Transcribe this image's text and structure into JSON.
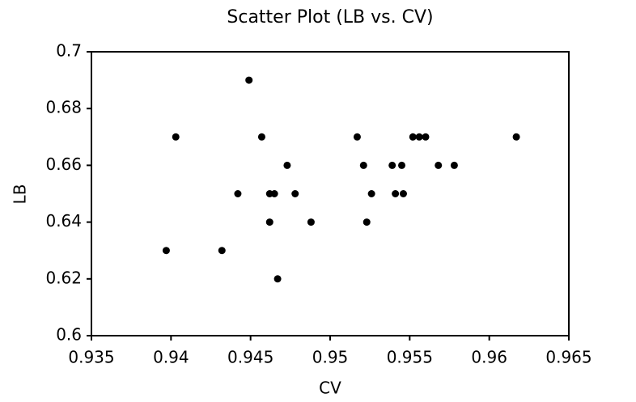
{
  "chart_data": {
    "type": "scatter",
    "title": "Scatter Plot (LB vs. CV)",
    "x_label": "CV",
    "y_label": "LB",
    "series": [
      {
        "color": "#000000",
        "x": [
          0.9397,
          0.9403,
          0.9432,
          0.9442,
          0.9449,
          0.9457,
          0.9462,
          0.9462,
          0.9465,
          0.9467,
          0.9473,
          0.9478,
          0.9488,
          0.9517,
          0.9521,
          0.9523,
          0.9526,
          0.9539,
          0.9541,
          0.9545,
          0.9546,
          0.9552,
          0.9556,
          0.956,
          0.9568,
          0.9578,
          0.9617
        ],
        "values": [
          0.63,
          0.67,
          0.63,
          0.65,
          0.69,
          0.67,
          0.65,
          0.64,
          0.65,
          0.62,
          0.66,
          0.65,
          0.64,
          0.67,
          0.66,
          0.64,
          0.65,
          0.66,
          0.65,
          0.66,
          0.65,
          0.67,
          0.67,
          0.67,
          0.66,
          0.66,
          0.67
        ]
      }
    ],
    "xlim": [
      0.935,
      0.965
    ],
    "xticks": [
      0.935,
      0.94,
      0.945,
      0.95,
      0.955,
      0.96,
      0.965
    ],
    "ylim": [
      0.6,
      0.7
    ],
    "yticks": [
      0.6,
      0.62,
      0.64,
      0.66,
      0.68,
      0.7
    ]
  }
}
